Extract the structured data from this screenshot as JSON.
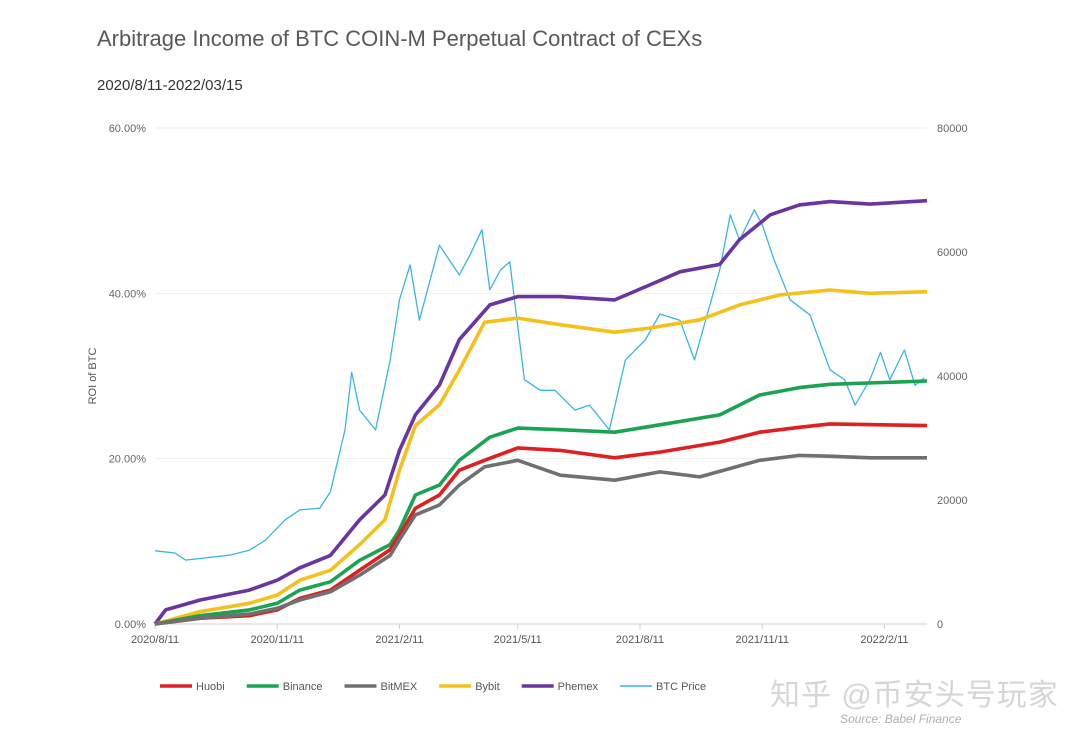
{
  "chart_data": {
    "type": "line",
    "title": "Arbitrage Income of BTC COIN-M Perpetual Contract of CEXs",
    "subtitle": "2020/8/11-2022/03/15",
    "ylabel": "ROI of BTC",
    "ylim": [
      0,
      0.6
    ],
    "y_ticks": [
      "0.00%",
      "20.00%",
      "40.00%",
      "60.00%"
    ],
    "y2lim": [
      0,
      80000
    ],
    "y2_ticks": [
      "0",
      "20000",
      "40000",
      "60000",
      "80000"
    ],
    "xlim": [
      "2020-08-11",
      "2022-03-15"
    ],
    "x_ticks": [
      {
        "date": "2020-08-11",
        "label": "2020/8/11"
      },
      {
        "date": "2020-11-11",
        "label": "2020/11/11"
      },
      {
        "date": "2021-02-11",
        "label": "2021/2/11"
      },
      {
        "date": "2021-05-11",
        "label": "2021/5/11"
      },
      {
        "date": "2021-08-11",
        "label": "2021/8/11"
      },
      {
        "date": "2021-11-11",
        "label": "2021/11/11"
      },
      {
        "date": "2022-02-11",
        "label": "2022/2/11"
      }
    ],
    "grid": "horizontal",
    "legend_position": "bottom",
    "series": [
      {
        "name": "Huobi",
        "color": "#e02020",
        "axis": "left",
        "points": [
          [
            "2020-08-11",
            0
          ],
          [
            "2020-09-14",
            0.7
          ],
          [
            "2020-10-21",
            1.0
          ],
          [
            "2020-11-11",
            1.7
          ],
          [
            "2020-11-28",
            3.1
          ],
          [
            "2020-12-21",
            4.1
          ],
          [
            "2021-01-12",
            6.5
          ],
          [
            "2021-02-04",
            9.0
          ],
          [
            "2021-02-11",
            10.8
          ],
          [
            "2021-02-23",
            14.0
          ],
          [
            "2021-03-13",
            15.6
          ],
          [
            "2021-03-28",
            18.6
          ],
          [
            "2021-04-16",
            19.8
          ],
          [
            "2021-05-11",
            21.3
          ],
          [
            "2021-06-12",
            21.0
          ],
          [
            "2021-07-23",
            20.1
          ],
          [
            "2021-08-26",
            20.8
          ],
          [
            "2021-10-10",
            22.0
          ],
          [
            "2021-11-09",
            23.2
          ],
          [
            "2021-12-09",
            23.8
          ],
          [
            "2022-01-01",
            24.2
          ],
          [
            "2022-03-15",
            24.0
          ]
        ]
      },
      {
        "name": "Binance",
        "color": "#1aa352",
        "axis": "left",
        "points": [
          [
            "2020-08-11",
            0
          ],
          [
            "2020-09-14",
            1.0
          ],
          [
            "2020-10-21",
            1.7
          ],
          [
            "2020-11-11",
            2.5
          ],
          [
            "2020-11-28",
            4.1
          ],
          [
            "2020-12-21",
            5.1
          ],
          [
            "2021-01-12",
            7.7
          ],
          [
            "2021-02-04",
            9.6
          ],
          [
            "2021-02-11",
            11.4
          ],
          [
            "2021-02-23",
            15.6
          ],
          [
            "2021-03-13",
            16.8
          ],
          [
            "2021-03-28",
            19.8
          ],
          [
            "2021-04-20",
            22.6
          ],
          [
            "2021-05-11",
            23.7
          ],
          [
            "2021-06-12",
            23.5
          ],
          [
            "2021-07-23",
            23.2
          ],
          [
            "2021-08-26",
            24.1
          ],
          [
            "2021-10-10",
            25.3
          ],
          [
            "2021-11-09",
            27.7
          ],
          [
            "2021-12-09",
            28.6
          ],
          [
            "2022-01-01",
            29.0
          ],
          [
            "2022-03-15",
            29.4
          ]
        ]
      },
      {
        "name": "BitMEX",
        "color": "#707070",
        "axis": "left",
        "points": [
          [
            "2020-08-11",
            0
          ],
          [
            "2020-09-14",
            0.7
          ],
          [
            "2020-10-21",
            1.2
          ],
          [
            "2020-11-11",
            1.9
          ],
          [
            "2020-11-28",
            2.9
          ],
          [
            "2020-12-21",
            3.9
          ],
          [
            "2021-01-12",
            5.9
          ],
          [
            "2021-02-04",
            8.3
          ],
          [
            "2021-02-11",
            10.2
          ],
          [
            "2021-02-23",
            13.2
          ],
          [
            "2021-03-13",
            14.4
          ],
          [
            "2021-03-28",
            16.8
          ],
          [
            "2021-04-16",
            19.0
          ],
          [
            "2021-05-11",
            19.8
          ],
          [
            "2021-06-12",
            18.0
          ],
          [
            "2021-07-23",
            17.4
          ],
          [
            "2021-08-26",
            18.4
          ],
          [
            "2021-09-25",
            17.8
          ],
          [
            "2021-11-09",
            19.8
          ],
          [
            "2021-12-09",
            20.4
          ],
          [
            "2022-01-01",
            20.3
          ],
          [
            "2022-01-31",
            20.1
          ],
          [
            "2022-03-15",
            20.1
          ]
        ]
      },
      {
        "name": "Bybit",
        "color": "#f5c01a",
        "axis": "left",
        "points": [
          [
            "2020-08-11",
            0
          ],
          [
            "2020-09-14",
            1.5
          ],
          [
            "2020-10-21",
            2.5
          ],
          [
            "2020-11-11",
            3.5
          ],
          [
            "2020-11-28",
            5.3
          ],
          [
            "2020-12-21",
            6.5
          ],
          [
            "2021-01-12",
            9.6
          ],
          [
            "2021-01-31",
            12.6
          ],
          [
            "2021-02-11",
            18.6
          ],
          [
            "2021-02-23",
            24.0
          ],
          [
            "2021-03-13",
            26.5
          ],
          [
            "2021-03-28",
            30.7
          ],
          [
            "2021-04-16",
            36.5
          ],
          [
            "2021-05-11",
            37.0
          ],
          [
            "2021-06-12",
            36.2
          ],
          [
            "2021-07-23",
            35.3
          ],
          [
            "2021-08-18",
            35.8
          ],
          [
            "2021-09-25",
            36.8
          ],
          [
            "2021-10-25",
            38.6
          ],
          [
            "2021-11-24",
            39.8
          ],
          [
            "2022-01-01",
            40.4
          ],
          [
            "2022-01-31",
            40.0
          ],
          [
            "2022-03-15",
            40.2
          ]
        ]
      },
      {
        "name": "Phemex",
        "color": "#6a35a0",
        "axis": "left",
        "points": [
          [
            "2020-08-11",
            0
          ],
          [
            "2020-08-19",
            1.7
          ],
          [
            "2020-09-14",
            2.9
          ],
          [
            "2020-10-21",
            4.1
          ],
          [
            "2020-11-11",
            5.3
          ],
          [
            "2020-11-28",
            6.8
          ],
          [
            "2020-12-21",
            8.3
          ],
          [
            "2021-01-12",
            12.6
          ],
          [
            "2021-01-31",
            15.6
          ],
          [
            "2021-02-11",
            21.0
          ],
          [
            "2021-02-23",
            25.3
          ],
          [
            "2021-03-13",
            28.9
          ],
          [
            "2021-03-28",
            34.4
          ],
          [
            "2021-04-20",
            38.6
          ],
          [
            "2021-05-11",
            39.6
          ],
          [
            "2021-06-12",
            39.6
          ],
          [
            "2021-07-23",
            39.2
          ],
          [
            "2021-08-18",
            41.0
          ],
          [
            "2021-09-10",
            42.6
          ],
          [
            "2021-10-10",
            43.5
          ],
          [
            "2021-10-25",
            46.5
          ],
          [
            "2021-11-17",
            49.5
          ],
          [
            "2021-12-09",
            50.7
          ],
          [
            "2022-01-01",
            51.1
          ],
          [
            "2022-01-31",
            50.8
          ],
          [
            "2022-03-15",
            51.2
          ]
        ]
      },
      {
        "name": "BTC Price",
        "color": "#3bb4e0",
        "axis": "right",
        "points": [
          [
            "2020-08-11",
            11800
          ],
          [
            "2020-08-26",
            11450
          ],
          [
            "2020-09-03",
            10300
          ],
          [
            "2020-10-06",
            11100
          ],
          [
            "2020-10-21",
            11900
          ],
          [
            "2020-11-02",
            13500
          ],
          [
            "2020-11-17",
            16800
          ],
          [
            "2020-11-28",
            18400
          ],
          [
            "2020-12-13",
            18700
          ],
          [
            "2020-12-21",
            21300
          ],
          [
            "2021-01-01",
            31300
          ],
          [
            "2021-01-06",
            40600
          ],
          [
            "2021-01-12",
            34500
          ],
          [
            "2021-01-24",
            31300
          ],
          [
            "2021-02-04",
            42600
          ],
          [
            "2021-02-11",
            52300
          ],
          [
            "2021-02-19",
            57900
          ],
          [
            "2021-02-26",
            49000
          ],
          [
            "2021-03-13",
            61100
          ],
          [
            "2021-03-28",
            56300
          ],
          [
            "2021-04-05",
            59500
          ],
          [
            "2021-04-14",
            63600
          ],
          [
            "2021-04-20",
            53900
          ],
          [
            "2021-04-28",
            57100
          ],
          [
            "2021-05-05",
            58400
          ],
          [
            "2021-05-16",
            39400
          ],
          [
            "2021-05-28",
            37700
          ],
          [
            "2021-06-08",
            37700
          ],
          [
            "2021-06-23",
            34500
          ],
          [
            "2021-07-04",
            35300
          ],
          [
            "2021-07-19",
            31300
          ],
          [
            "2021-07-31",
            42600
          ],
          [
            "2021-08-15",
            45800
          ],
          [
            "2021-08-26",
            50000
          ],
          [
            "2021-09-10",
            49000
          ],
          [
            "2021-09-21",
            42600
          ],
          [
            "2021-10-10",
            57100
          ],
          [
            "2021-10-18",
            66000
          ],
          [
            "2021-10-25",
            61900
          ],
          [
            "2021-11-05",
            66800
          ],
          [
            "2021-11-11",
            64400
          ],
          [
            "2021-11-20",
            58700
          ],
          [
            "2021-12-02",
            52300
          ],
          [
            "2021-12-17",
            49800
          ],
          [
            "2022-01-01",
            41000
          ],
          [
            "2022-01-12",
            39400
          ],
          [
            "2022-01-20",
            35300
          ],
          [
            "2022-01-31",
            39400
          ],
          [
            "2022-02-08",
            43800
          ],
          [
            "2022-02-15",
            39400
          ],
          [
            "2022-02-26",
            44200
          ],
          [
            "2022-03-06",
            38500
          ],
          [
            "2022-03-13",
            39700
          ]
        ]
      }
    ]
  },
  "watermark": "知乎 @币安头号玩家",
  "source": "Source: Babel Finance"
}
